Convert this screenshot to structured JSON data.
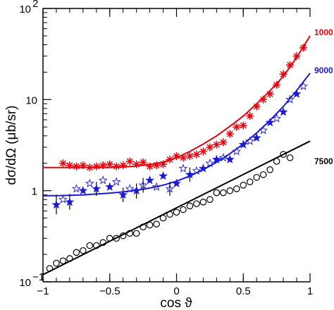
{
  "chart_data": {
    "type": "scatter",
    "title": "",
    "xlabel": "cos ϑ",
    "ylabel": "dσ/dΩ (μb/sr)",
    "xlim": [
      -1,
      1
    ],
    "ylim": [
      0.1,
      100
    ],
    "yscale": "log",
    "grid": false,
    "x_ticks": [
      {
        "value": -1,
        "label": "−1"
      },
      {
        "value": -0.5,
        "label": "−0.5"
      },
      {
        "value": 0,
        "label": "0"
      },
      {
        "value": 0.5,
        "label": "0.5"
      },
      {
        "value": 1,
        "label": "1"
      }
    ],
    "y_ticks": [
      {
        "value": 0.1,
        "base": "10",
        "exp": "−1"
      },
      {
        "value": 1,
        "base": "1",
        "exp": ""
      },
      {
        "value": 10,
        "base": "10",
        "exp": ""
      },
      {
        "value": 100,
        "base": "10",
        "exp": "2"
      }
    ],
    "series": [
      {
        "name": "1000",
        "color": "#e8000b",
        "marker": "asterisk",
        "x": [
          -0.85,
          -0.8,
          -0.75,
          -0.7,
          -0.65,
          -0.6,
          -0.55,
          -0.5,
          -0.45,
          -0.4,
          -0.35,
          -0.3,
          -0.25,
          -0.2,
          -0.15,
          -0.1,
          -0.05,
          0,
          0.05,
          0.1,
          0.15,
          0.2,
          0.25,
          0.3,
          0.35,
          0.4,
          0.45,
          0.5,
          0.55,
          0.6,
          0.65,
          0.7,
          0.75,
          0.8,
          0.85,
          0.9,
          0.95
        ],
        "values": [
          2.0,
          1.9,
          1.85,
          1.9,
          1.8,
          1.85,
          1.9,
          1.95,
          1.85,
          1.9,
          2.1,
          1.95,
          2.05,
          1.85,
          1.9,
          1.95,
          2.2,
          2.4,
          2.3,
          2.4,
          2.5,
          2.7,
          3.0,
          3.2,
          3.4,
          4.2,
          5.0,
          5.2,
          6.6,
          8.4,
          10.0,
          11.5,
          14.5,
          19.0,
          24.0,
          30.0,
          37.0
        ]
      },
      {
        "name": "9000",
        "color": "#1a1ad6",
        "marker": "star",
        "x": [
          -0.9,
          -0.85,
          -0.8,
          -0.75,
          -0.7,
          -0.65,
          -0.6,
          -0.55,
          -0.5,
          -0.45,
          -0.4,
          -0.35,
          -0.3,
          -0.25,
          -0.2,
          -0.15,
          -0.1,
          -0.05,
          0,
          0.05,
          0.1,
          0.15,
          0.2,
          0.25,
          0.3,
          0.35,
          0.4,
          0.45,
          0.5,
          0.55,
          0.6,
          0.65,
          0.7,
          0.75,
          0.8,
          0.85,
          0.9,
          0.95
        ],
        "values": [
          0.7,
          0.8,
          0.75,
          1.05,
          1.0,
          1.2,
          1.05,
          1.3,
          1.1,
          1.25,
          0.9,
          1.05,
          1.0,
          1.15,
          1.3,
          1.1,
          1.45,
          1.05,
          1.2,
          1.75,
          1.5,
          1.65,
          1.75,
          2.0,
          2.2,
          2.3,
          2.2,
          2.7,
          3.2,
          3.5,
          3.8,
          4.6,
          5.6,
          6.2,
          7.3,
          10.0,
          11.5,
          14.0
        ]
      },
      {
        "name": "7500",
        "color": "#000000",
        "marker": "circle",
        "x": [
          -0.95,
          -0.9,
          -0.85,
          -0.8,
          -0.75,
          -0.7,
          -0.65,
          -0.6,
          -0.55,
          -0.5,
          -0.45,
          -0.4,
          -0.35,
          -0.3,
          -0.25,
          -0.2,
          -0.15,
          -0.1,
          -0.05,
          0,
          0.05,
          0.1,
          0.15,
          0.2,
          0.25,
          0.3,
          0.35,
          0.4,
          0.45,
          0.5,
          0.55,
          0.6,
          0.65,
          0.7,
          0.75,
          0.8,
          0.85
        ],
        "values": [
          0.14,
          0.16,
          0.17,
          0.18,
          0.21,
          0.22,
          0.25,
          0.25,
          0.27,
          0.3,
          0.3,
          0.32,
          0.34,
          0.34,
          0.4,
          0.42,
          0.43,
          0.5,
          0.55,
          0.58,
          0.62,
          0.68,
          0.72,
          0.75,
          0.8,
          0.95,
          0.95,
          1.0,
          1.05,
          1.15,
          1.25,
          1.4,
          1.5,
          1.7,
          2.1,
          2.5,
          2.3
        ]
      }
    ],
    "fit_curves": [
      {
        "series": "1000",
        "color": "#e8000b",
        "x": [
          -1,
          -0.9,
          -0.8,
          -0.7,
          -0.6,
          -0.5,
          -0.4,
          -0.3,
          -0.2,
          -0.1,
          0,
          0.1,
          0.2,
          0.3,
          0.4,
          0.5,
          0.6,
          0.7,
          0.8,
          0.9,
          1
        ],
        "values": [
          1.8,
          1.8,
          1.8,
          1.8,
          1.8,
          1.8,
          1.82,
          1.86,
          1.94,
          2.06,
          2.3,
          2.7,
          3.25,
          4.0,
          5.1,
          6.6,
          9.0,
          12.5,
          18.0,
          29.0,
          50.0
        ]
      },
      {
        "series": "9000",
        "color": "#1a1ad6",
        "x": [
          -1,
          -0.9,
          -0.8,
          -0.7,
          -0.6,
          -0.5,
          -0.4,
          -0.3,
          -0.2,
          -0.1,
          0,
          0.1,
          0.2,
          0.3,
          0.4,
          0.5,
          0.6,
          0.7,
          0.8,
          0.9,
          1
        ],
        "values": [
          0.88,
          0.88,
          0.89,
          0.9,
          0.92,
          0.94,
          0.97,
          1.01,
          1.07,
          1.15,
          1.27,
          1.45,
          1.7,
          2.05,
          2.55,
          3.25,
          4.3,
          5.9,
          8.4,
          12.6,
          19.5
        ]
      },
      {
        "series": "7500",
        "color": "#000000",
        "x": [
          -1,
          1
        ],
        "values": [
          0.12,
          3.5
        ]
      }
    ],
    "error_bars": {
      "series": "9000",
      "points": [
        {
          "x": -0.9,
          "low": 0.55,
          "high": 0.9
        },
        {
          "x": -0.8,
          "low": 0.62,
          "high": 0.92
        },
        {
          "x": -0.6,
          "low": 0.88,
          "high": 1.25
        },
        {
          "x": -0.4,
          "low": 0.75,
          "high": 1.08
        },
        {
          "x": -0.3,
          "low": 0.82,
          "high": 1.2
        },
        {
          "x": -0.25,
          "low": 0.95,
          "high": 1.38
        },
        {
          "x": -0.05,
          "low": 0.88,
          "high": 1.25
        },
        {
          "x": 0.1,
          "low": 1.25,
          "high": 1.8
        }
      ]
    }
  }
}
